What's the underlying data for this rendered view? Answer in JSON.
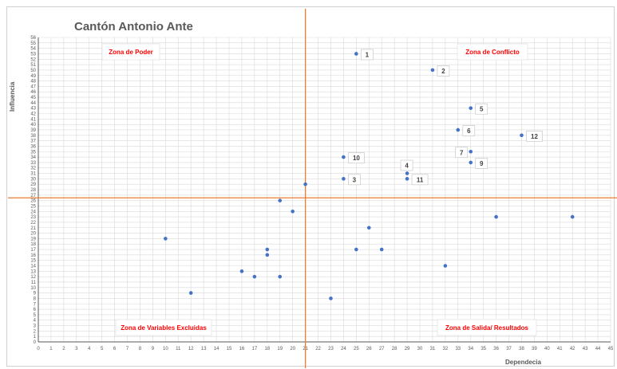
{
  "chart_data": {
    "type": "scatter",
    "title": "Cantón Antonio Ante",
    "xlabel": "Dependecia",
    "ylabel": "Influencia",
    "xlim": [
      0,
      45
    ],
    "ylim": [
      0,
      56
    ],
    "x_ticks": [
      0,
      1,
      2,
      3,
      4,
      5,
      6,
      7,
      8,
      9,
      10,
      11,
      12,
      13,
      14,
      15,
      16,
      17,
      18,
      19,
      20,
      21,
      22,
      23,
      24,
      25,
      26,
      27,
      28,
      29,
      30,
      31,
      32,
      33,
      34,
      35,
      36,
      37,
      38,
      39,
      40,
      41,
      42,
      43,
      44,
      45
    ],
    "y_ticks": [
      0,
      1,
      2,
      3,
      4,
      5,
      6,
      7,
      8,
      9,
      10,
      11,
      12,
      13,
      14,
      15,
      16,
      17,
      18,
      19,
      20,
      21,
      22,
      23,
      24,
      25,
      26,
      27,
      28,
      29,
      30,
      31,
      32,
      33,
      34,
      35,
      36,
      37,
      38,
      39,
      40,
      41,
      42,
      43,
      44,
      45,
      46,
      47,
      48,
      49,
      50,
      51,
      52,
      53,
      54,
      55,
      56
    ],
    "grid": true,
    "reference_lines": {
      "x": 21,
      "y": 26.5
    },
    "colors": {
      "points": "#4472c4",
      "reference": "#ed7d31",
      "zone_text": "#ff0000",
      "grid": "#d9d9d9"
    },
    "zones": [
      "Zona de Poder",
      "Zona de Conflicto",
      "Zona de Variables Excluidas",
      "Zona de Salida/ Resultados"
    ],
    "labeled_points": [
      {
        "label": "1",
        "x": 25,
        "y": 53
      },
      {
        "label": "2",
        "x": 31,
        "y": 50
      },
      {
        "label": "5",
        "x": 34,
        "y": 43
      },
      {
        "label": "6",
        "x": 33,
        "y": 39
      },
      {
        "label": "12",
        "x": 38,
        "y": 38
      },
      {
        "label": "7",
        "x": 34,
        "y": 35
      },
      {
        "label": "9",
        "x": 34,
        "y": 33
      },
      {
        "label": "10",
        "x": 24,
        "y": 34
      },
      {
        "label": "4",
        "x": 29,
        "y": 31
      },
      {
        "label": "3",
        "x": 24,
        "y": 30
      },
      {
        "label": "11",
        "x": 29,
        "y": 30
      }
    ],
    "other_points": [
      {
        "x": 21,
        "y": 29
      },
      {
        "x": 19,
        "y": 26
      },
      {
        "x": 20,
        "y": 24
      },
      {
        "x": 36,
        "y": 23
      },
      {
        "x": 42,
        "y": 23
      },
      {
        "x": 26,
        "y": 21
      },
      {
        "x": 10,
        "y": 19
      },
      {
        "x": 18,
        "y": 17
      },
      {
        "x": 18,
        "y": 16
      },
      {
        "x": 25,
        "y": 17
      },
      {
        "x": 27,
        "y": 17
      },
      {
        "x": 32,
        "y": 14
      },
      {
        "x": 16,
        "y": 13
      },
      {
        "x": 17,
        "y": 12
      },
      {
        "x": 19,
        "y": 12
      },
      {
        "x": 12,
        "y": 9
      },
      {
        "x": 23,
        "y": 8
      }
    ]
  }
}
